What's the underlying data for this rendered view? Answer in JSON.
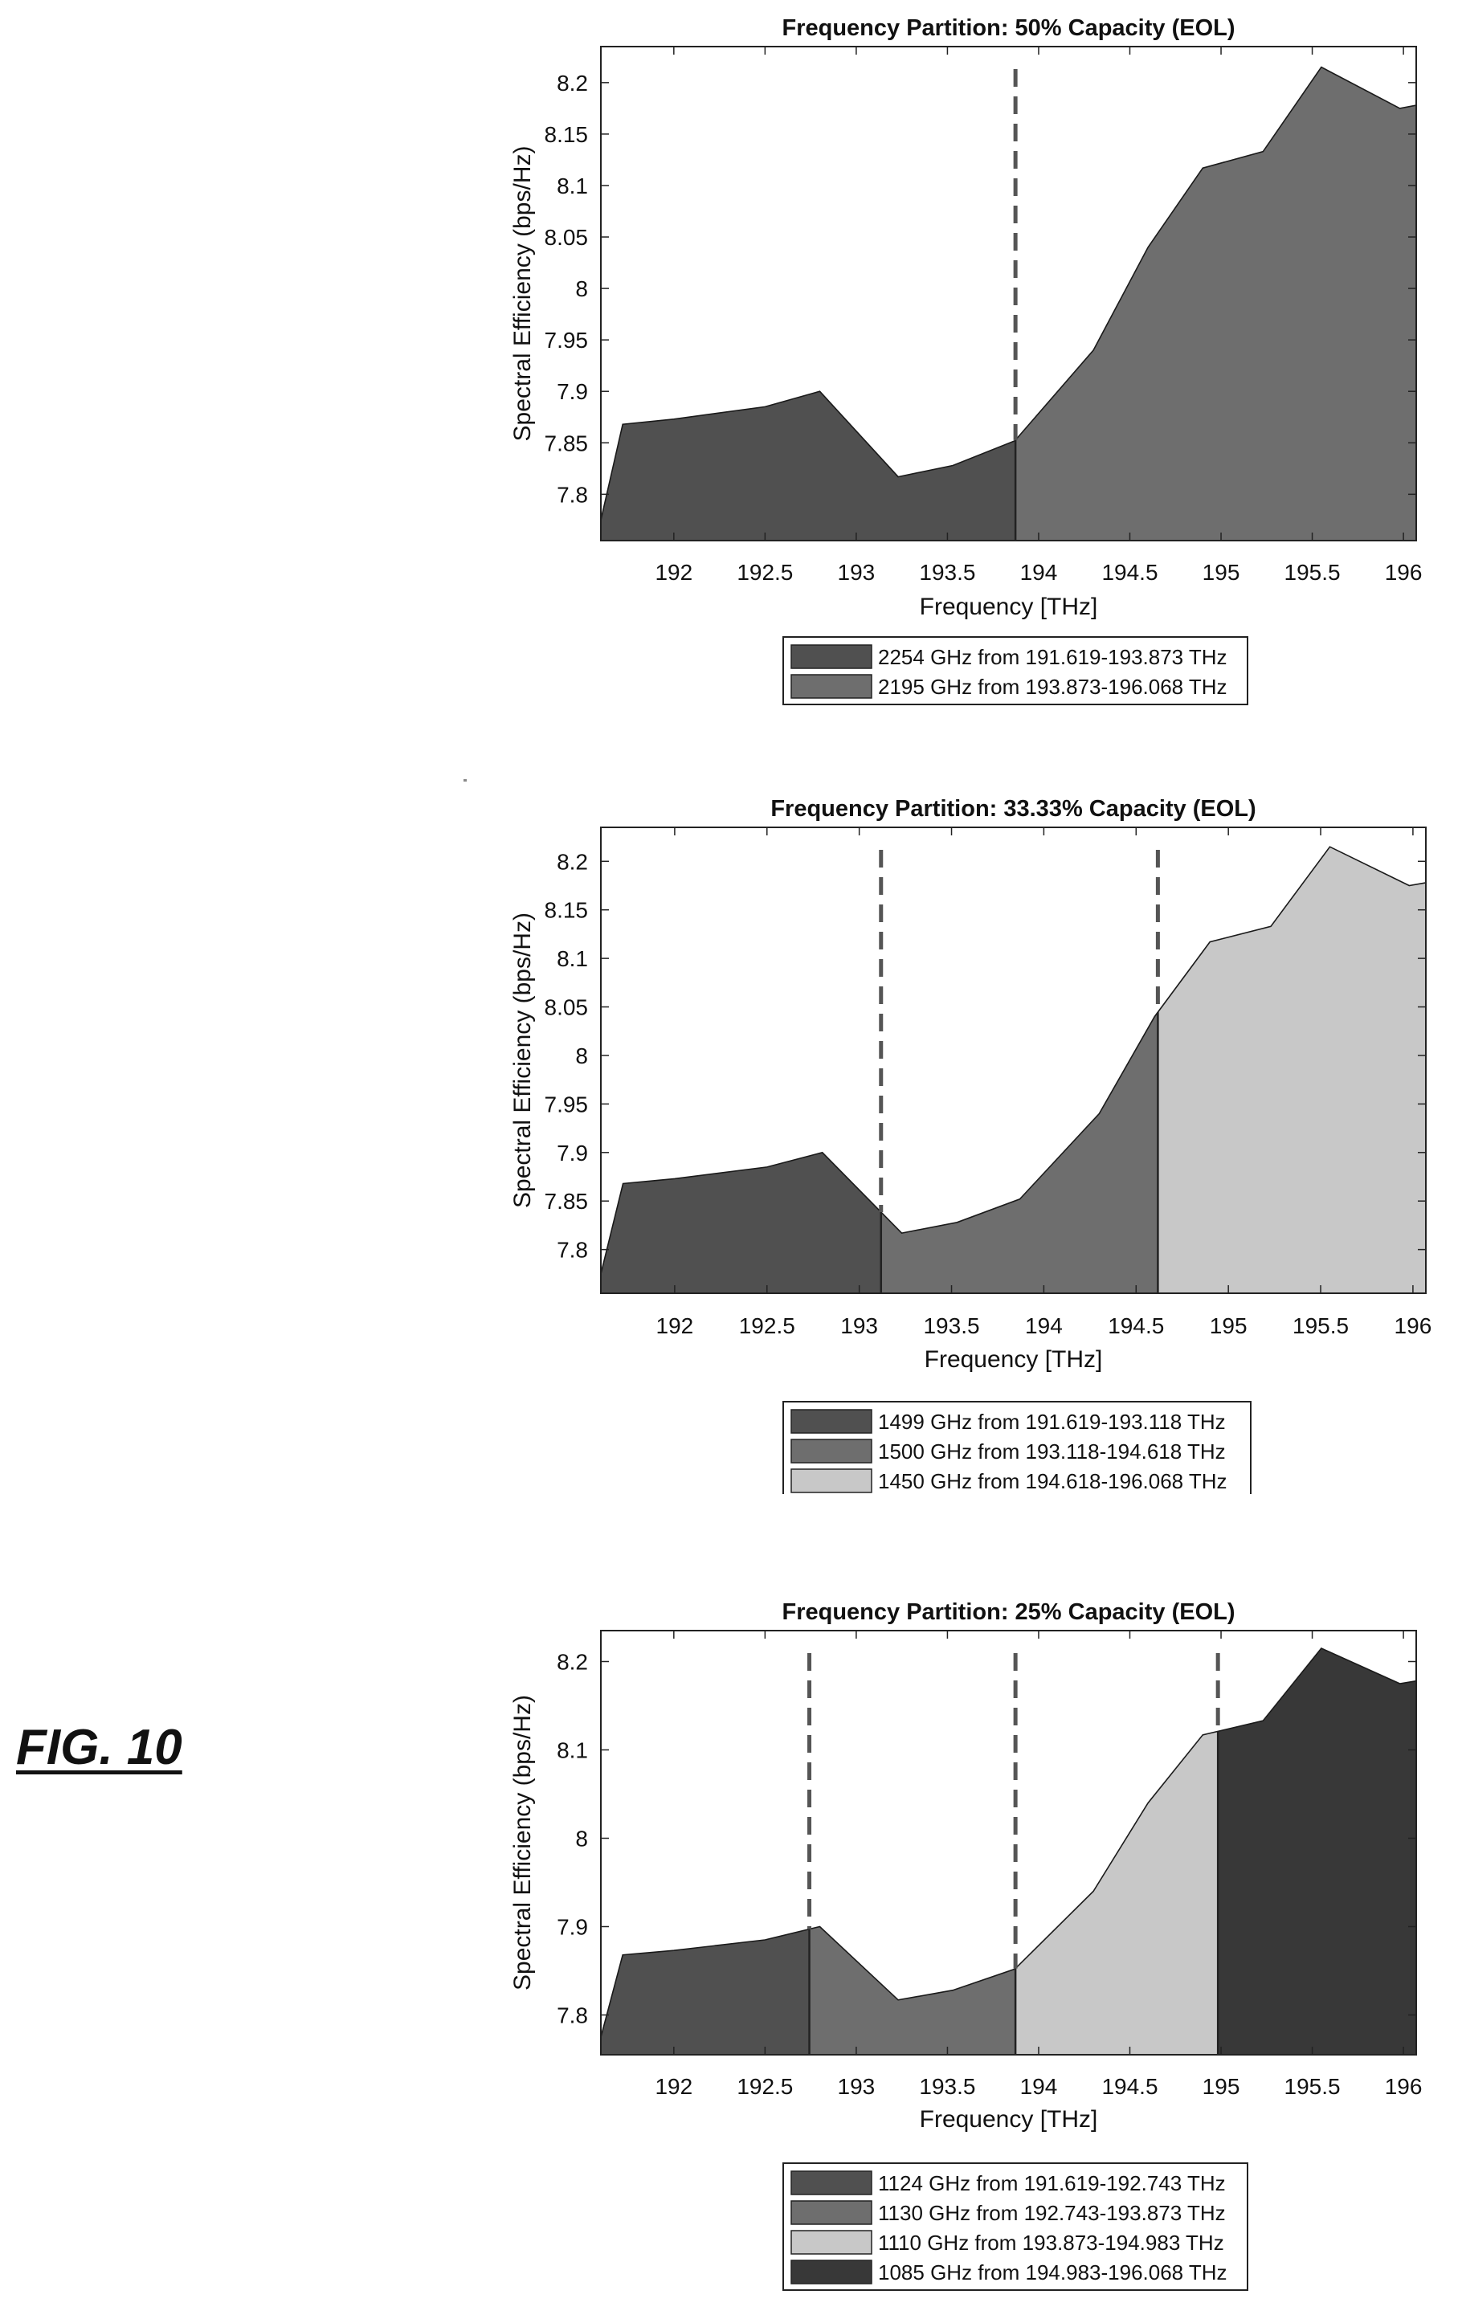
{
  "figure_label": "FIG. 10",
  "colors": {
    "dark": "#505050",
    "mid": "#6e6e6e",
    "light": "#c8c8c8",
    "darkest": "#383838",
    "dash": "#555555"
  },
  "chart_data": [
    {
      "type": "area",
      "title": "Frequency Partition: 50% Capacity (EOL)",
      "xlabel": "Frequency [THz]",
      "ylabel": "Spectral Efficiency (bps/Hz)",
      "xlim": [
        191.6,
        196.07
      ],
      "ylim": [
        7.755,
        8.235
      ],
      "xticks": [
        192,
        192.5,
        193,
        193.5,
        194,
        194.5,
        195,
        195.5,
        196
      ],
      "xtick_labels": [
        "192",
        "192.5",
        "193",
        "193.5",
        "194",
        "194.5",
        "195",
        "195.5",
        "196"
      ],
      "yticks": [
        7.8,
        7.85,
        7.9,
        7.95,
        8,
        8.05,
        8.1,
        8.15,
        8.2
      ],
      "ytick_labels": [
        "7.8",
        "7.85",
        "7.9",
        "7.95",
        "8",
        "8.05",
        "8.1",
        "8.15",
        "8.2"
      ],
      "x": [
        191.6,
        191.72,
        192.0,
        192.5,
        192.8,
        193.23,
        193.53,
        193.87,
        194.3,
        194.6,
        194.9,
        195.23,
        195.55,
        195.98,
        196.07
      ],
      "y": [
        7.775,
        7.868,
        7.873,
        7.885,
        7.9,
        7.817,
        7.828,
        7.852,
        7.94,
        8.04,
        8.117,
        8.133,
        8.215,
        8.175,
        8.178
      ],
      "boundaries": [
        193.873
      ],
      "bands": [
        {
          "from": 191.6,
          "to": 193.873,
          "color": "#505050"
        },
        {
          "from": 193.873,
          "to": 196.07,
          "color": "#6e6e6e"
        }
      ],
      "legend": [
        {
          "label": "2254 GHz from 191.619-193.873 THz",
          "color": "#505050"
        },
        {
          "label": "2195 GHz from 193.873-196.068 THz",
          "color": "#6e6e6e"
        }
      ]
    },
    {
      "type": "area",
      "title": "Frequency Partition: 33.33% Capacity (EOL)",
      "xlabel": "Frequency [THz]",
      "ylabel": "Spectral Efficiency (bps/Hz)",
      "xlim": [
        191.6,
        196.07
      ],
      "ylim": [
        7.755,
        8.235
      ],
      "xticks": [
        192,
        192.5,
        193,
        193.5,
        194,
        194.5,
        195,
        195.5,
        196
      ],
      "xtick_labels": [
        "192",
        "192.5",
        "193",
        "193.5",
        "194",
        "194.5",
        "195",
        "195.5",
        "196"
      ],
      "yticks": [
        7.8,
        7.85,
        7.9,
        7.95,
        8,
        8.05,
        8.1,
        8.15,
        8.2
      ],
      "ytick_labels": [
        "7.8",
        "7.85",
        "7.9",
        "7.95",
        "8",
        "8.05",
        "8.1",
        "8.15",
        "8.2"
      ],
      "x": [
        191.6,
        191.72,
        192.0,
        192.5,
        192.8,
        193.23,
        193.53,
        193.87,
        194.3,
        194.6,
        194.9,
        195.23,
        195.55,
        195.98,
        196.07
      ],
      "y": [
        7.775,
        7.868,
        7.873,
        7.885,
        7.9,
        7.817,
        7.828,
        7.852,
        7.94,
        8.04,
        8.117,
        8.133,
        8.215,
        8.175,
        8.178
      ],
      "boundaries": [
        193.118,
        194.618
      ],
      "bands": [
        {
          "from": 191.6,
          "to": 193.118,
          "color": "#505050"
        },
        {
          "from": 193.118,
          "to": 194.618,
          "color": "#6e6e6e"
        },
        {
          "from": 194.618,
          "to": 196.07,
          "color": "#c8c8c8"
        }
      ],
      "legend": [
        {
          "label": "1499 GHz from 191.619-193.118 THz",
          "color": "#505050"
        },
        {
          "label": "1500 GHz from 193.118-194.618 THz",
          "color": "#6e6e6e"
        },
        {
          "label": "1450 GHz from 194.618-196.068 THz",
          "color": "#c8c8c8"
        }
      ]
    },
    {
      "type": "area",
      "title": "Frequency Partition: 25% Capacity (EOL)",
      "xlabel": "Frequency [THz]",
      "ylabel": "Spectral Efficiency (bps/Hz)",
      "xlim": [
        191.6,
        196.07
      ],
      "ylim": [
        7.755,
        8.235
      ],
      "xticks": [
        192,
        192.5,
        193,
        193.5,
        194,
        194.5,
        195,
        195.5,
        196
      ],
      "xtick_labels": [
        "192",
        "192.5",
        "193",
        "193.5",
        "194",
        "194.5",
        "195",
        "195.5",
        "196"
      ],
      "yticks": [
        7.8,
        7.9,
        8,
        8.1,
        8.2
      ],
      "ytick_labels": [
        "7.8",
        "7.9",
        "8",
        "8.1",
        "8.2"
      ],
      "x": [
        191.6,
        191.72,
        192.0,
        192.5,
        192.8,
        193.23,
        193.53,
        193.87,
        194.3,
        194.6,
        194.9,
        195.23,
        195.55,
        195.98,
        196.07
      ],
      "y": [
        7.775,
        7.868,
        7.873,
        7.885,
        7.9,
        7.817,
        7.828,
        7.852,
        7.94,
        8.04,
        8.117,
        8.133,
        8.215,
        8.175,
        8.178
      ],
      "boundaries": [
        192.743,
        193.873,
        194.983
      ],
      "bands": [
        {
          "from": 191.6,
          "to": 192.743,
          "color": "#505050"
        },
        {
          "from": 192.743,
          "to": 193.873,
          "color": "#6e6e6e"
        },
        {
          "from": 193.873,
          "to": 194.983,
          "color": "#c8c8c8"
        },
        {
          "from": 194.983,
          "to": 196.07,
          "color": "#383838"
        }
      ],
      "legend": [
        {
          "label": "1124 GHz from 191.619-192.743 THz",
          "color": "#505050"
        },
        {
          "label": "1130 GHz from 192.743-193.873 THz",
          "color": "#6e6e6e"
        },
        {
          "label": "1110 GHz from 193.873-194.983 THz",
          "color": "#c8c8c8"
        },
        {
          "label": "1085 GHz from 194.983-196.068 THz",
          "color": "#383838"
        }
      ]
    }
  ]
}
